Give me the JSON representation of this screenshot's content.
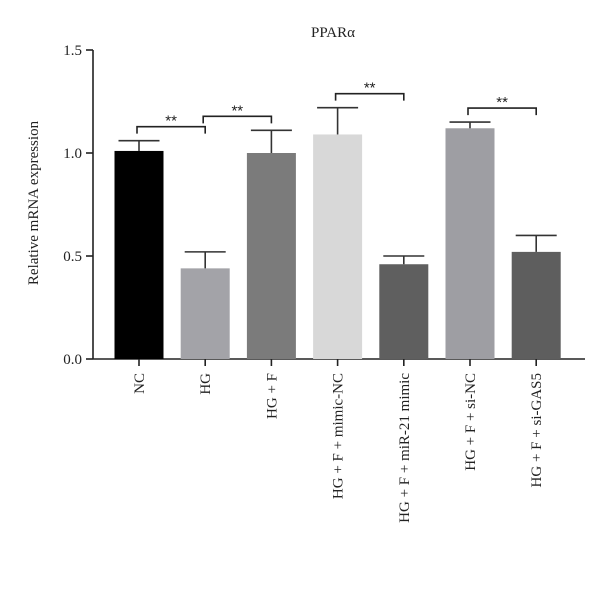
{
  "chart_data": {
    "type": "bar",
    "title": "PPARα",
    "xlabel": "",
    "ylabel": "Relative mRNA expression",
    "ylim": [
      0,
      1.5
    ],
    "yticks": [
      "0.0",
      "0.5",
      "1.0",
      "1.5"
    ],
    "ytick_values": [
      0,
      0.5,
      1.0,
      1.5
    ],
    "categories": [
      "NC",
      "HG",
      "HG + F",
      "HG + F + mimic-NC",
      "HG + F + miR-21 mimic",
      "HG + F + si-NC",
      "HG + F + si-GAS5"
    ],
    "values": [
      1.01,
      0.44,
      1.0,
      1.09,
      0.46,
      1.12,
      0.52
    ],
    "errors": [
      0.05,
      0.08,
      0.11,
      0.13,
      0.04,
      0.03,
      0.08
    ],
    "colors": [
      "#000000",
      "#a3a3a8",
      "#7b7b7b",
      "#d8d8d8",
      "#5f5f5f",
      "#9e9ea3",
      "#5e5e5e"
    ],
    "significance": [
      {
        "from": 0,
        "to": 1,
        "label": "**"
      },
      {
        "from": 1,
        "to": 2,
        "label": "**"
      },
      {
        "from": 3,
        "to": 4,
        "label": "**"
      },
      {
        "from": 5,
        "to": 6,
        "label": "**"
      }
    ],
    "grid": false
  }
}
